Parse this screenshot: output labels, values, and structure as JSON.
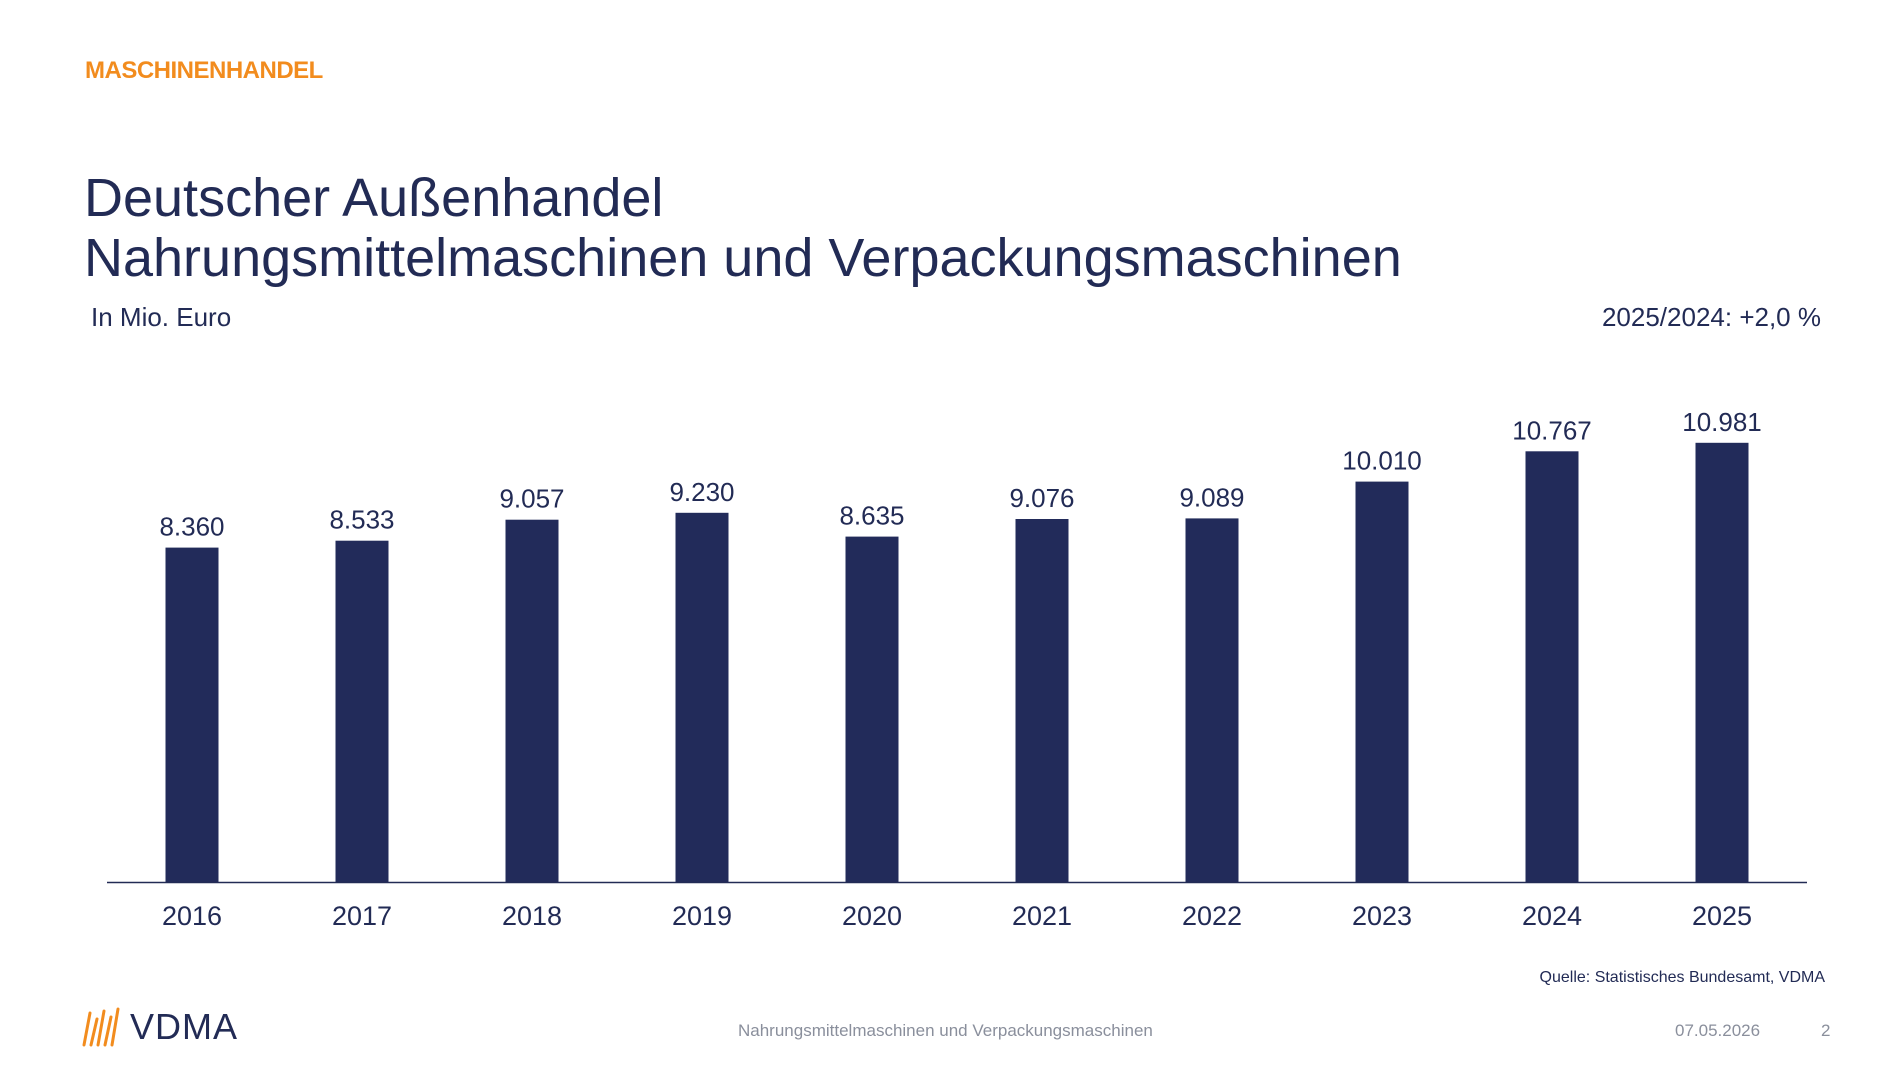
{
  "header": {
    "kicker": "MASCHINENHANDEL",
    "title_line1": "Deutscher Außenhandel",
    "title_line2": "Nahrungsmittelmaschinen und Verpackungsmaschinen",
    "unit": "In Mio. Euro",
    "growth": "2025/2024: +2,0 %"
  },
  "chart_data": {
    "type": "bar",
    "categories": [
      "2016",
      "2017",
      "2018",
      "2019",
      "2020",
      "2021",
      "2022",
      "2023",
      "2024",
      "2025"
    ],
    "values": [
      8360,
      8533,
      9057,
      9230,
      8635,
      9076,
      9089,
      10010,
      10767,
      10981
    ],
    "value_labels": [
      "8.360",
      "8.533",
      "9.057",
      "9.230",
      "8.635",
      "9.076",
      "9.089",
      "10.010",
      "10.767",
      "10.981"
    ],
    "ylim": [
      0,
      11000
    ],
    "bar_color": "#222b5a",
    "grid": false,
    "legend": false
  },
  "footer": {
    "source": "Quelle: Statistisches Bundesamt, VDMA",
    "logo_text": "VDMA",
    "center_text": "Nahrungsmittelmaschinen und Verpackungsmaschinen",
    "date": "07.05.2026",
    "page": "2"
  },
  "colors": {
    "accent": "#f28c1e",
    "navy": "#222b55"
  }
}
